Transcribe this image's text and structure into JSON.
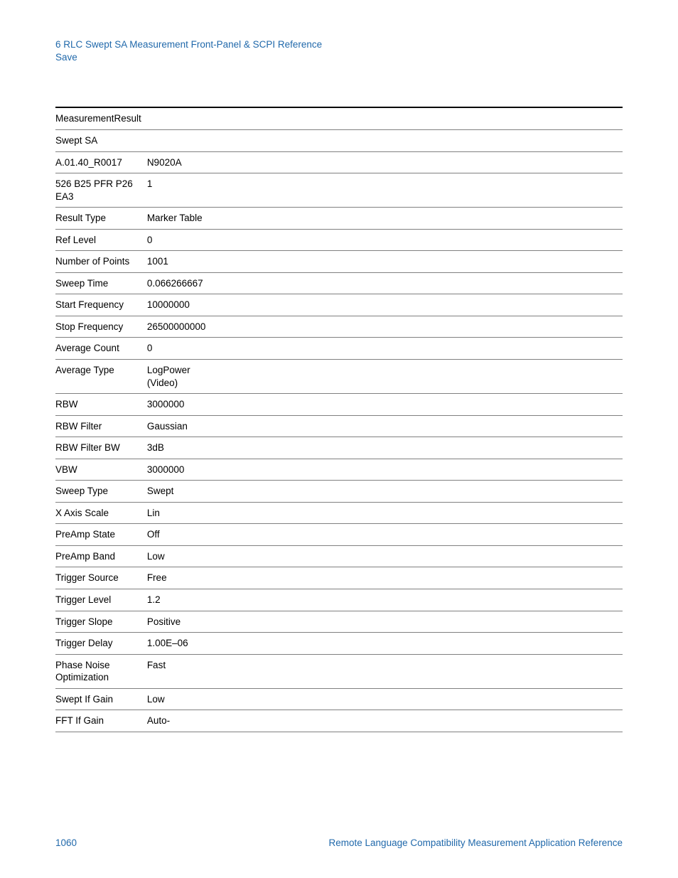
{
  "header": {
    "section_title": "6  RLC Swept SA Measurement Front-Panel & SCPI Reference",
    "subsection": "Save"
  },
  "table": {
    "type": "table",
    "label_column_width": 128,
    "value_column_width": 80,
    "border_top_color": "#000000",
    "row_border_color": "#808080",
    "text_color": "#000000",
    "font_size": 13.5,
    "rows": [
      {
        "label": "MeasurementResult",
        "value": ""
      },
      {
        "label": "Swept SA",
        "value": ""
      },
      {
        "label": "A.01.40_R0017",
        "value": "N9020A"
      },
      {
        "label": "526 B25 PFR P26 EA3",
        "value": "1"
      },
      {
        "label": "Result Type",
        "value": "Marker Table"
      },
      {
        "label": "Ref Level",
        "value": "0"
      },
      {
        "label": "Number of Points",
        "value": "1001"
      },
      {
        "label": "Sweep Time",
        "value": "0.066266667"
      },
      {
        "label": "Start Frequency",
        "value": "10000000"
      },
      {
        "label": "Stop Frequency",
        "value": "26500000000"
      },
      {
        "label": "Average Count",
        "value": "0"
      },
      {
        "label": "Average Type",
        "value": "LogPower (Video)"
      },
      {
        "label": "RBW",
        "value": "3000000"
      },
      {
        "label": "RBW Filter",
        "value": "Gaussian"
      },
      {
        "label": "RBW Filter BW",
        "value": "3dB"
      },
      {
        "label": "VBW",
        "value": "3000000"
      },
      {
        "label": "Sweep Type",
        "value": "Swept"
      },
      {
        "label": "X Axis Scale",
        "value": "Lin"
      },
      {
        "label": "PreAmp State",
        "value": "Off"
      },
      {
        "label": "PreAmp Band",
        "value": "Low"
      },
      {
        "label": "Trigger Source",
        "value": "Free"
      },
      {
        "label": "Trigger Level",
        "value": "1.2"
      },
      {
        "label": "Trigger Slope",
        "value": "Positive"
      },
      {
        "label": "Trigger Delay",
        "value": "1.00E–06"
      },
      {
        "label": "Phase Noise Optimization",
        "value": "Fast"
      },
      {
        "label": "Swept If Gain",
        "value": "Low"
      },
      {
        "label": "FFT If Gain",
        "value": "Auto-"
      }
    ]
  },
  "footer": {
    "page_number": "1060",
    "document_title": "Remote Language Compatibility Measurement Application Reference",
    "text_color": "#2169ab",
    "font_size": 13.5
  },
  "colors": {
    "heading_blue": "#2169ab",
    "body_text": "#000000",
    "background": "#ffffff"
  }
}
